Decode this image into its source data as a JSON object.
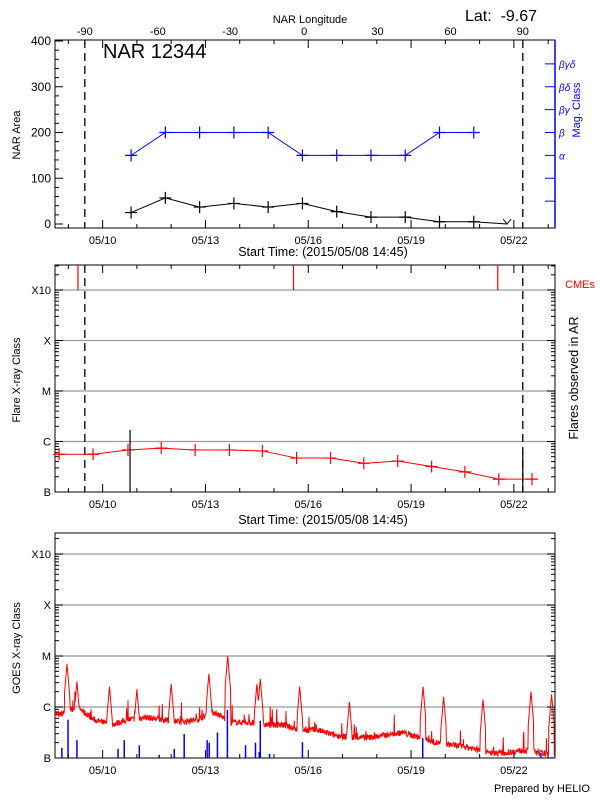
{
  "header": {
    "lat_label": "Lat:  -9.67",
    "top_axis_title": "NAR Longitude",
    "region_title": "NAR 12344",
    "footer": "Prepared by HELIO"
  },
  "colors": {
    "area": "#000000",
    "mag_class": "#0000ff",
    "flare": "#ff0000",
    "cme": "#ff0000",
    "goes_long": "#ff0000",
    "goes_short": "#0000ff",
    "grid": "#999999"
  },
  "chart_data": [
    {
      "type": "line",
      "panel": "NAR area and magnetic class",
      "xlabel": "Start Time: (2015/05/08 14:45)",
      "ylabel": "NAR Area",
      "y2label": "Mag. Class",
      "x_unit": "day of May 2015",
      "xlim": [
        8.61,
        23.2
      ],
      "x_ticks": [
        {
          "day": 10,
          "label": "05/10"
        },
        {
          "day": 13,
          "label": "05/13"
        },
        {
          "day": 16,
          "label": "05/16"
        },
        {
          "day": 19,
          "label": "05/19"
        },
        {
          "day": 22,
          "label": "05/22"
        }
      ],
      "top_axis": {
        "label": "NAR Longitude",
        "ticks": [
          {
            "day": 9.48,
            "label": "-90"
          },
          {
            "day": 11.61,
            "label": "-60"
          },
          {
            "day": 13.72,
            "label": "-30"
          },
          {
            "day": 15.88,
            "label": "0"
          },
          {
            "day": 18.02,
            "label": "30"
          },
          {
            "day": 20.15,
            "label": "60"
          },
          {
            "day": 22.26,
            "label": "90"
          }
        ]
      },
      "ylim": [
        0,
        400
      ],
      "y_ticks": [
        0,
        100,
        200,
        300,
        400
      ],
      "limb_lines_day": [
        9.48,
        22.26
      ],
      "series": [
        {
          "name": "NAR Area",
          "x": [
            10.83,
            11.83,
            12.83,
            13.83,
            14.83,
            15.83,
            16.83,
            17.83,
            18.83,
            19.83,
            20.83,
            21.8
          ],
          "values": [
            25,
            57,
            37,
            45,
            37,
            45,
            27,
            15,
            15,
            5,
            5,
            0
          ]
        },
        {
          "name": "Mag. Class",
          "x": [
            10.83,
            11.83,
            12.83,
            13.83,
            14.83,
            15.83,
            16.83,
            17.83,
            18.83,
            19.83,
            20.83
          ],
          "values": [
            "α",
            "β",
            "β",
            "β",
            "β",
            "α",
            "α",
            "α",
            "α",
            "β",
            "β"
          ]
        }
      ],
      "mag_class_axis": [
        {
          "label": "",
          "level": 50
        },
        {
          "label": "",
          "level": 100
        },
        {
          "label": "α",
          "level": 150
        },
        {
          "label": "β",
          "level": 200
        },
        {
          "label": "βγ",
          "level": 250
        },
        {
          "label": "βδ",
          "level": 300
        },
        {
          "label": "βγδ",
          "level": 350
        }
      ]
    },
    {
      "type": "line",
      "panel": "Flares observed in AR",
      "xlabel": "Start Time: (2015/05/08 14:45)",
      "ylabel": "Flare X-ray Class",
      "y2label": "Flares observed in AR",
      "cme_label": "CMEs",
      "y_scale": "log",
      "y_unit": "W/m^2",
      "ylim": [
        1e-07,
        0.0033
      ],
      "y_ticks": [
        {
          "value": 1e-07,
          "label": "B"
        },
        {
          "value": 1e-06,
          "label": "C"
        },
        {
          "value": 1e-05,
          "label": "M"
        },
        {
          "value": 0.0001,
          "label": "X"
        },
        {
          "value": 0.001,
          "label": "X10"
        }
      ],
      "grid": true,
      "background_flux": {
        "x": [
          8.73,
          9.72,
          10.74,
          11.71,
          12.7,
          13.7,
          14.66,
          15.66,
          16.65,
          17.62,
          18.61,
          19.6,
          20.57,
          21.56,
          22.53
        ],
        "values": [
          5.6e-07,
          5.6e-07,
          6.8e-07,
          7.4e-07,
          6.8e-07,
          6.8e-07,
          6.5e-07,
          4.7e-07,
          4.7e-07,
          3.7e-07,
          4.1e-07,
          3.2e-07,
          2.5e-07,
          1.8e-07,
          1.8e-07
        ]
      },
      "flares": [
        {
          "day": 10.8,
          "peak": 1.7e-06
        },
        {
          "day": 22.26,
          "peak": 6.3e-07
        }
      ],
      "cmes_day": [
        9.28,
        15.57,
        21.53
      ]
    },
    {
      "type": "line",
      "panel": "GOES X-ray flux",
      "ylabel": "GOES X-ray Class",
      "y_scale": "log",
      "ylim": [
        1e-07,
        0.0033
      ],
      "grid": true,
      "long_channel_log10": {
        "x": [
          8.75,
          9.25,
          9.75,
          10.25,
          10.75,
          11.25,
          11.75,
          12.25,
          12.75,
          13.25,
          13.75,
          14.25,
          14.75,
          15.25,
          15.75,
          16.25,
          16.75,
          17.25,
          17.75,
          18.25,
          18.75,
          19.25,
          19.75,
          20.25,
          20.75,
          21.25,
          21.75,
          22.25,
          22.75,
          23.2
        ],
        "values": [
          -6.15,
          -6.0,
          -6.25,
          -6.35,
          -6.25,
          -6.2,
          -6.25,
          -6.3,
          -6.25,
          -6.1,
          -6.3,
          -6.3,
          -6.35,
          -6.35,
          -6.45,
          -6.45,
          -6.55,
          -6.6,
          -6.6,
          -6.55,
          -6.5,
          -6.6,
          -6.7,
          -6.75,
          -6.8,
          -6.9,
          -6.9,
          -6.85,
          -6.9,
          -6.95
        ]
      },
      "long_channel_peaks_log10": [
        [
          8.96,
          -5.15
        ],
        [
          9.25,
          -5.5
        ],
        [
          10.2,
          -5.6
        ],
        [
          11.0,
          -5.65
        ],
        [
          12.0,
          -5.55
        ],
        [
          13.1,
          -5.35
        ],
        [
          13.65,
          -5.0
        ],
        [
          14.5,
          -5.55
        ],
        [
          14.6,
          -5.45
        ],
        [
          15.75,
          -5.6
        ],
        [
          17.2,
          -5.9
        ],
        [
          19.35,
          -5.6
        ],
        [
          19.95,
          -5.8
        ],
        [
          21.1,
          -5.85
        ],
        [
          22.5,
          -5.7
        ],
        [
          23.1,
          -5.75
        ]
      ],
      "short_channel_bars_log10": [
        [
          8.81,
          -6.8
        ],
        [
          8.99,
          -6.25
        ],
        [
          9.25,
          -6.65
        ],
        [
          10.45,
          -6.82
        ],
        [
          10.63,
          -6.65
        ],
        [
          11.07,
          -6.75
        ],
        [
          11.65,
          -6.94
        ],
        [
          12.09,
          -6.82
        ],
        [
          12.38,
          -6.53
        ],
        [
          13.05,
          -6.65
        ],
        [
          13.11,
          -6.7
        ],
        [
          13.35,
          -6.5
        ],
        [
          13.64,
          -6.06
        ],
        [
          14.17,
          -6.75
        ],
        [
          14.46,
          -6.7
        ],
        [
          14.57,
          -6.88
        ],
        [
          14.6,
          -6.27
        ],
        [
          14.87,
          -6.92
        ],
        [
          15.83,
          -6.69
        ],
        [
          19.34,
          -6.61
        ],
        [
          22.79,
          -6.9
        ],
        [
          23.11,
          -6.98
        ]
      ]
    }
  ]
}
